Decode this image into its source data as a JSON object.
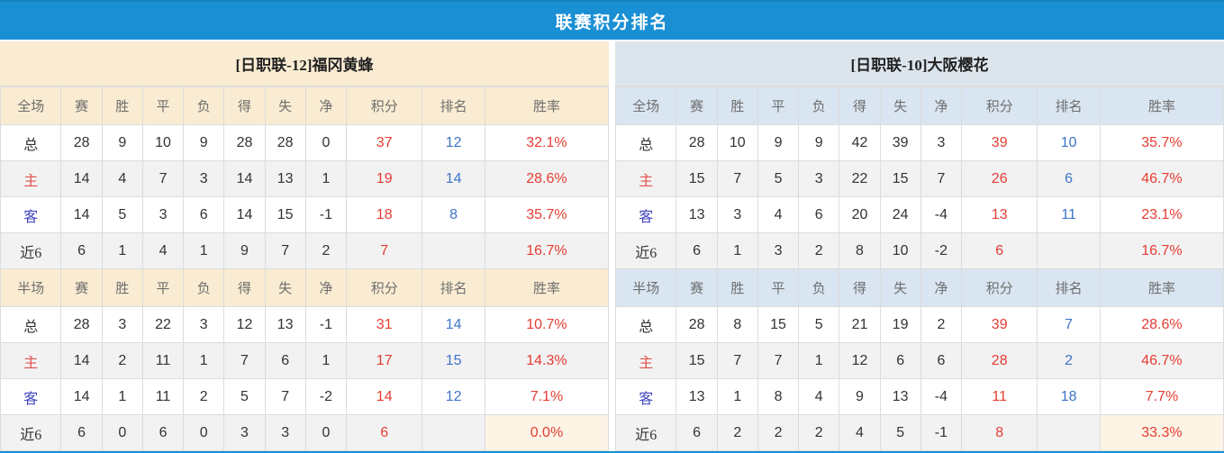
{
  "title": "联赛积分排名",
  "colors": {
    "title_bg": "#1b8fd3",
    "left_header_bg": "#faecd2",
    "right_team_header_bg": "#dde5ec",
    "right_col_header_bg": "#d9e5f1",
    "alt_row_bg": "#f2f2f2",
    "points_red": "#e53c32",
    "rank_blue": "#3d74c8",
    "home_label_red": "#e0524e",
    "away_label_blue": "#4046c0",
    "rate_highlight_bg": "#fdf4e6"
  },
  "columns_full": [
    "全场",
    "赛",
    "胜",
    "平",
    "负",
    "得",
    "失",
    "净",
    "积分",
    "排名",
    "胜率"
  ],
  "columns_half": [
    "半场",
    "赛",
    "胜",
    "平",
    "负",
    "得",
    "失",
    "净",
    "积分",
    "排名",
    "胜率"
  ],
  "teams": {
    "left": {
      "team_title": "[日职联-12]福冈黄蜂",
      "full": {
        "rows": [
          {
            "label": "总",
            "type": "total",
            "cells": [
              "28",
              "9",
              "10",
              "9",
              "28",
              "28",
              "0"
            ],
            "points": "37",
            "rank": "12",
            "rate": "32.1%"
          },
          {
            "label": "主",
            "type": "home",
            "cells": [
              "14",
              "4",
              "7",
              "3",
              "14",
              "13",
              "1"
            ],
            "points": "19",
            "rank": "14",
            "rate": "28.6%"
          },
          {
            "label": "客",
            "type": "away",
            "cells": [
              "14",
              "5",
              "3",
              "6",
              "14",
              "15",
              "-1"
            ],
            "points": "18",
            "rank": "8",
            "rate": "35.7%"
          },
          {
            "label": "近6",
            "type": "recent",
            "cells": [
              "6",
              "1",
              "4",
              "1",
              "9",
              "7",
              "2"
            ],
            "points": "7",
            "rank": "",
            "rate": "16.7%"
          }
        ]
      },
      "half": {
        "rows": [
          {
            "label": "总",
            "type": "total",
            "cells": [
              "28",
              "3",
              "22",
              "3",
              "12",
              "13",
              "-1"
            ],
            "points": "31",
            "rank": "14",
            "rate": "10.7%"
          },
          {
            "label": "主",
            "type": "home",
            "cells": [
              "14",
              "2",
              "11",
              "1",
              "7",
              "6",
              "1"
            ],
            "points": "17",
            "rank": "15",
            "rate": "14.3%"
          },
          {
            "label": "客",
            "type": "away",
            "cells": [
              "14",
              "1",
              "11",
              "2",
              "5",
              "7",
              "-2"
            ],
            "points": "14",
            "rank": "12",
            "rate": "7.1%"
          },
          {
            "label": "近6",
            "type": "recent",
            "cells": [
              "6",
              "0",
              "6",
              "0",
              "3",
              "3",
              "0"
            ],
            "points": "6",
            "rank": "",
            "rate": "0.0%"
          }
        ]
      }
    },
    "right": {
      "team_title": "[日职联-10]大阪樱花",
      "full": {
        "rows": [
          {
            "label": "总",
            "type": "total",
            "cells": [
              "28",
              "10",
              "9",
              "9",
              "42",
              "39",
              "3"
            ],
            "points": "39",
            "rank": "10",
            "rate": "35.7%"
          },
          {
            "label": "主",
            "type": "home",
            "cells": [
              "15",
              "7",
              "5",
              "3",
              "22",
              "15",
              "7"
            ],
            "points": "26",
            "rank": "6",
            "rate": "46.7%"
          },
          {
            "label": "客",
            "type": "away",
            "cells": [
              "13",
              "3",
              "4",
              "6",
              "20",
              "24",
              "-4"
            ],
            "points": "13",
            "rank": "11",
            "rate": "23.1%"
          },
          {
            "label": "近6",
            "type": "recent",
            "cells": [
              "6",
              "1",
              "3",
              "2",
              "8",
              "10",
              "-2"
            ],
            "points": "6",
            "rank": "",
            "rate": "16.7%"
          }
        ]
      },
      "half": {
        "rows": [
          {
            "label": "总",
            "type": "total",
            "cells": [
              "28",
              "8",
              "15",
              "5",
              "21",
              "19",
              "2"
            ],
            "points": "39",
            "rank": "7",
            "rate": "28.6%"
          },
          {
            "label": "主",
            "type": "home",
            "cells": [
              "15",
              "7",
              "7",
              "1",
              "12",
              "6",
              "6"
            ],
            "points": "28",
            "rank": "2",
            "rate": "46.7%"
          },
          {
            "label": "客",
            "type": "away",
            "cells": [
              "13",
              "1",
              "8",
              "4",
              "9",
              "13",
              "-4"
            ],
            "points": "11",
            "rank": "18",
            "rate": "7.7%"
          },
          {
            "label": "近6",
            "type": "recent",
            "cells": [
              "6",
              "2",
              "2",
              "2",
              "4",
              "5",
              "-1"
            ],
            "points": "8",
            "rank": "",
            "rate": "33.3%"
          }
        ]
      }
    }
  }
}
